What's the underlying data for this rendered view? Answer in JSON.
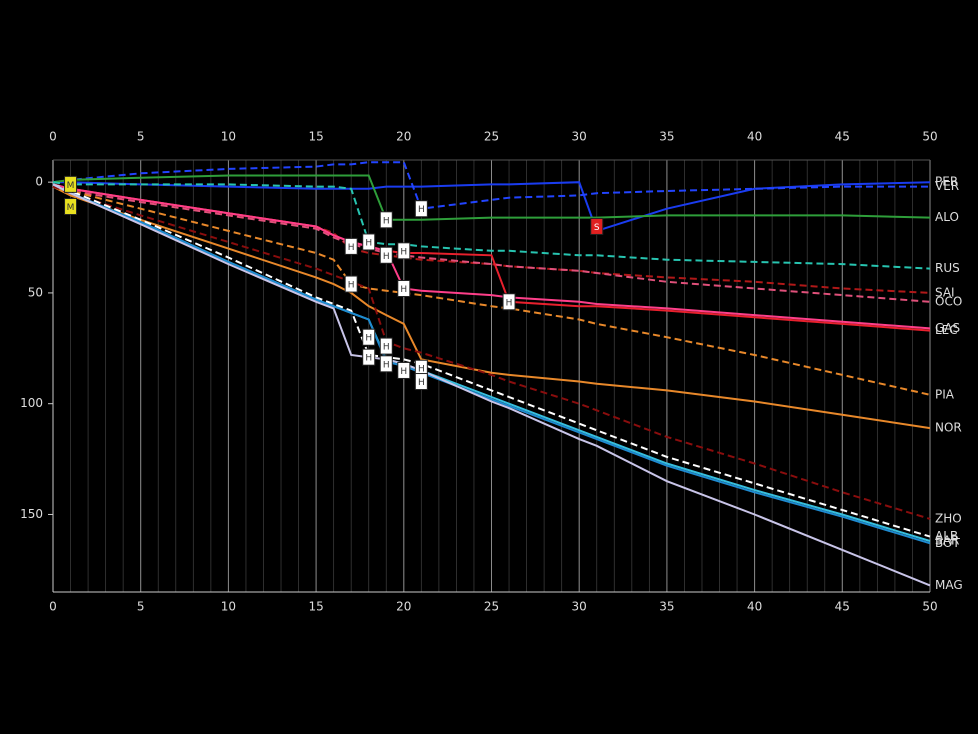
{
  "chart_data": {
    "type": "line",
    "x": [
      0,
      1,
      5,
      10,
      15,
      16,
      17,
      18,
      19,
      20,
      21,
      25,
      26,
      30,
      31,
      35,
      40,
      45,
      50
    ],
    "xlim": [
      0,
      50
    ],
    "xticks": [
      0,
      5,
      10,
      15,
      20,
      25,
      30,
      35,
      40,
      45,
      50
    ],
    "ylim": [
      -10,
      185
    ],
    "yticks": [
      0,
      50,
      100,
      150
    ],
    "y_reversed": true,
    "grid": true,
    "series": [
      {
        "name": "PER",
        "color": "#1a3cf0",
        "dashed": false,
        "values": [
          0,
          0,
          1,
          2,
          3,
          3,
          3,
          3,
          2,
          2,
          2,
          1,
          1,
          0,
          22,
          12,
          3,
          1,
          0
        ]
      },
      {
        "name": "VER",
        "color": "#2244ff",
        "dashed": true,
        "values": [
          0,
          -1,
          -4,
          -6,
          -7,
          -8,
          -8,
          -9,
          -9,
          -9,
          12,
          8,
          7,
          6,
          5,
          4,
          3,
          2,
          2
        ]
      },
      {
        "name": "ALO",
        "color": "#2e9e3a",
        "dashed": false,
        "values": [
          0,
          -1,
          -2,
          -3,
          -3,
          -3,
          -3,
          -3,
          17,
          17,
          17,
          16,
          16,
          16,
          16,
          15,
          15,
          15,
          16
        ]
      },
      {
        "name": "RUS",
        "color": "#27c4b0",
        "dashed": true,
        "values": [
          0,
          1,
          1,
          1,
          2,
          2,
          3,
          27,
          28,
          28,
          29,
          31,
          31,
          33,
          33,
          35,
          36,
          37,
          39
        ]
      },
      {
        "name": "SAI",
        "color": "#b01818",
        "dashed": true,
        "values": [
          1,
          3,
          8,
          14,
          20,
          23,
          30,
          32,
          33,
          34,
          35,
          37,
          38,
          40,
          41,
          43,
          45,
          48,
          50
        ]
      },
      {
        "name": "OCO",
        "color": "#e0507a",
        "dashed": true,
        "values": [
          1,
          4,
          9,
          15,
          21,
          25,
          28,
          30,
          32,
          33,
          34,
          37,
          38,
          40,
          41,
          45,
          48,
          51,
          54
        ]
      },
      {
        "name": "LEC",
        "color": "#e8202d",
        "dashed": false,
        "values": [
          1,
          3,
          8,
          14,
          20,
          24,
          27,
          29,
          31,
          32,
          32,
          33,
          54,
          56,
          56,
          58,
          61,
          64,
          67
        ]
      },
      {
        "name": "GAS",
        "color": "#ff3f8a",
        "dashed": false,
        "values": [
          1,
          3,
          8,
          14,
          20,
          24,
          27,
          29,
          31,
          48,
          49,
          51,
          52,
          54,
          55,
          57,
          60,
          63,
          66
        ]
      },
      {
        "name": "PIA",
        "color": "#e8882a",
        "dashed": true,
        "values": [
          1,
          4,
          12,
          22,
          32,
          35,
          46,
          48,
          49,
          50,
          51,
          56,
          57,
          62,
          64,
          70,
          78,
          87,
          96
        ]
      },
      {
        "name": "NOR",
        "color": "#e8882a",
        "dashed": false,
        "values": [
          2,
          6,
          17,
          30,
          43,
          46,
          50,
          56,
          60,
          64,
          80,
          86,
          87,
          90,
          91,
          94,
          99,
          105,
          111
        ]
      },
      {
        "name": "ZHO",
        "color": "#8a0d0d",
        "dashed": true,
        "values": [
          2,
          5,
          15,
          27,
          39,
          42,
          45,
          48,
          72,
          75,
          77,
          87,
          90,
          100,
          103,
          115,
          127,
          140,
          152
        ]
      },
      {
        "name": "ALB",
        "color": "#ffffff",
        "dashed": true,
        "values": [
          1,
          4,
          17,
          34,
          52,
          55,
          58,
          78,
          79,
          80,
          82,
          94,
          97,
          109,
          112,
          124,
          136,
          148,
          160
        ]
      },
      {
        "name": "SAR",
        "color": "#37bedd",
        "dashed": false,
        "values": [
          1,
          5,
          18,
          36,
          53,
          56,
          59,
          62,
          80,
          82,
          85,
          97,
          100,
          112,
          115,
          127,
          139,
          150,
          162
        ]
      },
      {
        "name": "BOT",
        "color": "#1e8ad0",
        "dashed": false,
        "values": [
          1,
          5,
          18,
          36,
          53,
          56,
          59,
          62,
          81,
          83,
          86,
          98,
          101,
          113,
          116,
          128,
          140,
          151,
          163
        ]
      },
      {
        "name": "MAG",
        "color": "#c8c4e8",
        "dashed": false,
        "values": [
          1,
          5,
          19,
          37,
          54,
          57,
          78,
          79,
          80,
          82,
          85,
          99,
          102,
          116,
          119,
          135,
          150,
          166,
          182
        ]
      }
    ],
    "annotations": [
      {
        "x": 1,
        "y": 1,
        "label": "M",
        "color": "#e8e020"
      },
      {
        "x": 1,
        "y": 11,
        "label": "M",
        "color": "#e8e020"
      },
      {
        "x": 31,
        "y": 20,
        "label": "S",
        "color": "#e02020"
      },
      {
        "x": 21,
        "y": 12,
        "label": "H",
        "color": "#ffffff"
      },
      {
        "x": 19,
        "y": 17,
        "label": "H",
        "color": "#ffffff"
      },
      {
        "x": 17,
        "y": 29,
        "label": "H",
        "color": "#ffffff"
      },
      {
        "x": 18,
        "y": 27,
        "label": "H",
        "color": "#ffffff"
      },
      {
        "x": 20,
        "y": 31,
        "label": "H",
        "color": "#ffffff"
      },
      {
        "x": 19,
        "y": 33,
        "label": "H",
        "color": "#ffffff"
      },
      {
        "x": 17,
        "y": 46,
        "label": "H",
        "color": "#ffffff"
      },
      {
        "x": 20,
        "y": 48,
        "label": "H",
        "color": "#ffffff"
      },
      {
        "x": 26,
        "y": 54,
        "label": "H",
        "color": "#ffffff"
      },
      {
        "x": 18,
        "y": 70,
        "label": "H",
        "color": "#ffffff"
      },
      {
        "x": 18,
        "y": 79,
        "label": "H",
        "color": "#ffffff"
      },
      {
        "x": 19,
        "y": 74,
        "label": "H",
        "color": "#ffffff"
      },
      {
        "x": 19,
        "y": 82,
        "label": "H",
        "color": "#ffffff"
      },
      {
        "x": 20,
        "y": 85,
        "label": "H",
        "color": "#ffffff"
      },
      {
        "x": 21,
        "y": 84,
        "label": "H",
        "color": "#ffffff"
      },
      {
        "x": 21,
        "y": 90,
        "label": "H",
        "color": "#ffffff"
      }
    ]
  }
}
